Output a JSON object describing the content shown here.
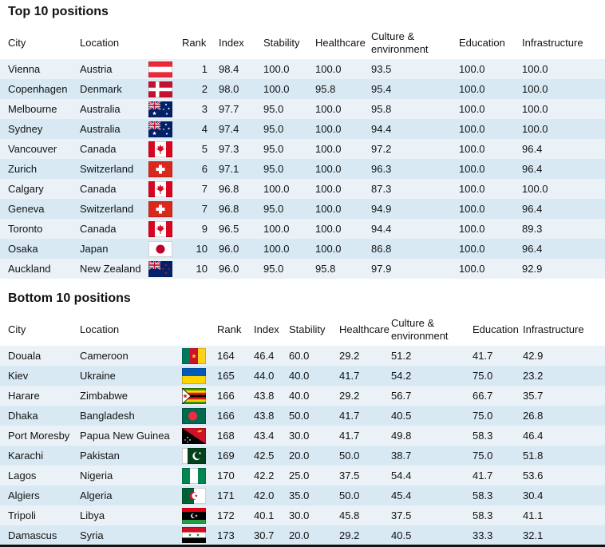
{
  "colors": {
    "stripe_light": "#eaf2f8",
    "stripe_dark": "#d8e9f3",
    "text": "#121212",
    "rule": "#121212"
  },
  "chart_data": [
    {
      "type": "table",
      "title": "Top 10 positions",
      "columns": [
        "City",
        "Location",
        "Rank",
        "Index",
        "Stability",
        "Healthcare",
        "Culture & environment",
        "Education",
        "Infrastructure"
      ],
      "rows": [
        {
          "city": "Vienna",
          "location": "Austria",
          "flag_icon": "flag-austria",
          "rank": "1",
          "index": "98.4",
          "stability": "100.0",
          "healthcare": "100.0",
          "culture": "93.5",
          "education": "100.0",
          "infrastructure": "100.0"
        },
        {
          "city": "Copenhagen",
          "location": "Denmark",
          "flag_icon": "flag-denmark",
          "rank": "2",
          "index": "98.0",
          "stability": "100.0",
          "healthcare": "95.8",
          "culture": "95.4",
          "education": "100.0",
          "infrastructure": "100.0"
        },
        {
          "city": "Melbourne",
          "location": "Australia",
          "flag_icon": "flag-australia",
          "rank": "3",
          "index": "97.7",
          "stability": "95.0",
          "healthcare": "100.0",
          "culture": "95.8",
          "education": "100.0",
          "infrastructure": "100.0"
        },
        {
          "city": "Sydney",
          "location": "Australia",
          "flag_icon": "flag-australia",
          "rank": "4",
          "index": "97.4",
          "stability": "95.0",
          "healthcare": "100.0",
          "culture": "94.4",
          "education": "100.0",
          "infrastructure": "100.0"
        },
        {
          "city": "Vancouver",
          "location": "Canada",
          "flag_icon": "flag-canada",
          "rank": "5",
          "index": "97.3",
          "stability": "95.0",
          "healthcare": "100.0",
          "culture": "97.2",
          "education": "100.0",
          "infrastructure": "96.4"
        },
        {
          "city": "Zurich",
          "location": "Switzerland",
          "flag_icon": "flag-switzerland",
          "rank": "6",
          "index": "97.1",
          "stability": "95.0",
          "healthcare": "100.0",
          "culture": "96.3",
          "education": "100.0",
          "infrastructure": "96.4"
        },
        {
          "city": "Calgary",
          "location": "Canada",
          "flag_icon": "flag-canada",
          "rank": "7",
          "index": "96.8",
          "stability": "100.0",
          "healthcare": "100.0",
          "culture": "87.3",
          "education": "100.0",
          "infrastructure": "100.0"
        },
        {
          "city": "Geneva",
          "location": "Switzerland",
          "flag_icon": "flag-switzerland",
          "rank": "7",
          "index": "96.8",
          "stability": "95.0",
          "healthcare": "100.0",
          "culture": "94.9",
          "education": "100.0",
          "infrastructure": "96.4"
        },
        {
          "city": "Toronto",
          "location": "Canada",
          "flag_icon": "flag-canada",
          "rank": "9",
          "index": "96.5",
          "stability": "100.0",
          "healthcare": "100.0",
          "culture": "94.4",
          "education": "100.0",
          "infrastructure": "89.3"
        },
        {
          "city": "Osaka",
          "location": "Japan",
          "flag_icon": "flag-japan",
          "rank": "10",
          "index": "96.0",
          "stability": "100.0",
          "healthcare": "100.0",
          "culture": "86.8",
          "education": "100.0",
          "infrastructure": "96.4"
        },
        {
          "city": "Auckland",
          "location": "New Zealand",
          "flag_icon": "flag-new-zealand",
          "rank": "10",
          "index": "96.0",
          "stability": "95.0",
          "healthcare": "95.8",
          "culture": "97.9",
          "education": "100.0",
          "infrastructure": "92.9"
        }
      ]
    },
    {
      "type": "table",
      "title": "Bottom 10 positions",
      "columns": [
        "City",
        "Location",
        "Rank",
        "Index",
        "Stability",
        "Healthcare",
        "Culture & environment",
        "Education",
        "Infrastructure"
      ],
      "rows": [
        {
          "city": "Douala",
          "location": "Cameroon",
          "flag_icon": "flag-cameroon",
          "rank": "164",
          "index": "46.4",
          "stability": "60.0",
          "healthcare": "29.2",
          "culture": "51.2",
          "education": "41.7",
          "infrastructure": "42.9"
        },
        {
          "city": "Kiev",
          "location": "Ukraine",
          "flag_icon": "flag-ukraine",
          "rank": "165",
          "index": "44.0",
          "stability": "40.0",
          "healthcare": "41.7",
          "culture": "54.2",
          "education": "75.0",
          "infrastructure": "23.2"
        },
        {
          "city": "Harare",
          "location": "Zimbabwe",
          "flag_icon": "flag-zimbabwe",
          "rank": "166",
          "index": "43.8",
          "stability": "40.0",
          "healthcare": "29.2",
          "culture": "56.7",
          "education": "66.7",
          "infrastructure": "35.7"
        },
        {
          "city": "Dhaka",
          "location": "Bangladesh",
          "flag_icon": "flag-bangladesh",
          "rank": "166",
          "index": "43.8",
          "stability": "50.0",
          "healthcare": "41.7",
          "culture": "40.5",
          "education": "75.0",
          "infrastructure": "26.8"
        },
        {
          "city": "Port Moresby",
          "location": "Papua New Guinea",
          "flag_icon": "flag-papua-new-guinea",
          "rank": "168",
          "index": "43.4",
          "stability": "30.0",
          "healthcare": "41.7",
          "culture": "49.8",
          "education": "58.3",
          "infrastructure": "46.4"
        },
        {
          "city": "Karachi",
          "location": "Pakistan",
          "flag_icon": "flag-pakistan",
          "rank": "169",
          "index": "42.5",
          "stability": "20.0",
          "healthcare": "50.0",
          "culture": "38.7",
          "education": "75.0",
          "infrastructure": "51.8"
        },
        {
          "city": "Lagos",
          "location": "Nigeria",
          "flag_icon": "flag-nigeria",
          "rank": "170",
          "index": "42.2",
          "stability": "25.0",
          "healthcare": "37.5",
          "culture": "54.4",
          "education": "41.7",
          "infrastructure": "53.6"
        },
        {
          "city": "Algiers",
          "location": "Algeria",
          "flag_icon": "flag-algeria",
          "rank": "171",
          "index": "42.0",
          "stability": "35.0",
          "healthcare": "50.0",
          "culture": "45.4",
          "education": "58.3",
          "infrastructure": "30.4"
        },
        {
          "city": "Tripoli",
          "location": "Libya",
          "flag_icon": "flag-libya",
          "rank": "172",
          "index": "40.1",
          "stability": "30.0",
          "healthcare": "45.8",
          "culture": "37.5",
          "education": "58.3",
          "infrastructure": "41.1"
        },
        {
          "city": "Damascus",
          "location": "Syria",
          "flag_icon": "flag-syria",
          "rank": "173",
          "index": "30.7",
          "stability": "20.0",
          "healthcare": "29.2",
          "culture": "40.5",
          "education": "33.3",
          "infrastructure": "32.1"
        }
      ]
    }
  ]
}
